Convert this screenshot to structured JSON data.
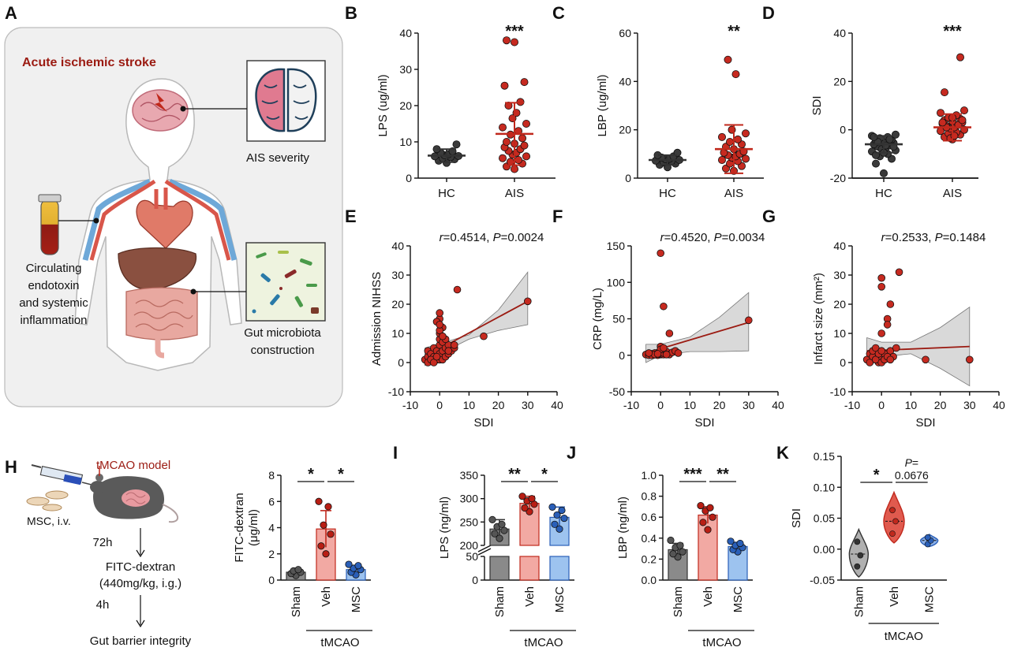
{
  "panel_labels": [
    "A",
    "B",
    "C",
    "D",
    "E",
    "F",
    "G",
    "H",
    "I",
    "J",
    "K"
  ],
  "illustration_a": {
    "title": "Acute ischemic stroke",
    "labels": [
      "AIS severity",
      "Circulating\nendotoxin\nand systemic\ninflammation",
      "Gut microbiota\nconstruction"
    ]
  },
  "illustration_h": {
    "model": "tMCAO model",
    "msc": "MSC, i.v.",
    "steps": [
      "72h",
      "FITC-dextran",
      "(440mg/kg, i.g.)",
      "4h",
      "Gut barrier integrity"
    ]
  },
  "colors": {
    "hc": "#333333",
    "ais": "#c0281c",
    "sham": "#8a8a8a",
    "veh": "#f2a9a3",
    "msc": "#9dc3ef",
    "line": "#9b1b12",
    "band": "#d9d9d9"
  },
  "chart_data": [
    {
      "id": "B",
      "type": "scatter",
      "categories": [
        "HC",
        "AIS"
      ],
      "ylabel": "LPS (ug/ml)",
      "ylim": [
        0,
        40
      ],
      "yticks": [
        0,
        10,
        20,
        30,
        40
      ],
      "mean": [
        6.2,
        12.2
      ],
      "sd": [
        1.8,
        8.6
      ],
      "points": [
        [
          4.2,
          4.8,
          5.2,
          5.5,
          5.8,
          6.0,
          6.1,
          6.3,
          6.6,
          7.0,
          7.4,
          8.0,
          9.3
        ],
        [
          2.5,
          3.2,
          4.0,
          4.5,
          5.0,
          5.5,
          6.0,
          6.5,
          7.0,
          7.5,
          8.0,
          8.5,
          9.0,
          9.5,
          10.0,
          11.0,
          12.0,
          13.0,
          14.0,
          15.0,
          16.5,
          18.0,
          20.0,
          21.0,
          25.5,
          26.5,
          37.5,
          38.0
        ]
      ],
      "significance": "***"
    },
    {
      "id": "C",
      "type": "scatter",
      "categories": [
        "HC",
        "AIS"
      ],
      "ylabel": "LBP (ug/ml)",
      "ylim": [
        0,
        60
      ],
      "yticks": [
        0,
        20,
        40,
        60
      ],
      "mean": [
        7.5,
        12.0
      ],
      "sd": [
        2.0,
        10.0
      ],
      "points": [
        [
          4.5,
          5.5,
          6.0,
          6.5,
          7.0,
          7.2,
          7.5,
          7.8,
          8.0,
          8.5,
          9.0,
          9.5,
          10.5
        ],
        [
          3.0,
          4.0,
          5.0,
          6.0,
          7.0,
          7.5,
          8.0,
          8.5,
          9.0,
          9.5,
          10.0,
          10.5,
          11.0,
          12.0,
          13.0,
          14.0,
          15.0,
          16.0,
          17.0,
          18.5,
          20.0,
          43.0,
          49.0
        ]
      ],
      "significance": "**"
    },
    {
      "id": "D",
      "type": "scatter",
      "categories": [
        "HC",
        "AIS"
      ],
      "ylabel": "SDI",
      "ylim": [
        -20,
        40
      ],
      "yticks": [
        -20,
        0,
        20,
        40
      ],
      "mean": [
        -6.0,
        1.0
      ],
      "sd": [
        3.5,
        5.5
      ],
      "points": [
        [
          -18.0,
          -14.0,
          -12.0,
          -11.0,
          -10.0,
          -9.0,
          -8.5,
          -8.0,
          -7.5,
          -7.0,
          -6.5,
          -6.0,
          -5.5,
          -5.0,
          -4.5,
          -4.0,
          -3.5,
          -3.0,
          -2.5,
          -2.0,
          -8.0,
          -6.5,
          -5.0,
          -4.0,
          -3.0,
          -7.0,
          -9.5,
          -10.5
        ],
        [
          -4.0,
          -3.0,
          -2.0,
          -1.5,
          -1.0,
          -0.5,
          0.0,
          0.5,
          1.0,
          1.5,
          2.0,
          2.5,
          3.0,
          3.5,
          4.0,
          4.5,
          5.0,
          6.0,
          7.0,
          8.0,
          -3.5,
          -2.5,
          1.0,
          2.0,
          3.0,
          4.0,
          5.0,
          15.5,
          30.0
        ]
      ],
      "significance": "***"
    },
    {
      "id": "E",
      "type": "scatter",
      "xlabel": "SDI",
      "ylabel": "Admission NIHSS",
      "xlim": [
        -10,
        40
      ],
      "ylim": [
        -10,
        40
      ],
      "xticks": [
        -10,
        0,
        10,
        20,
        30,
        40
      ],
      "yticks": [
        -10,
        0,
        10,
        20,
        30,
        40
      ],
      "stat_r": "r",
      "stat_r_value": "=0.4514, ",
      "stat_p": "P",
      "stat_p_value": "=0.0024",
      "fit": [
        [
          -5,
          2.0
        ],
        [
          30,
          21.0
        ]
      ],
      "band_upper": [
        [
          -5,
          5.0
        ],
        [
          0,
          6.5
        ],
        [
          10,
          9.5
        ],
        [
          20,
          18.0
        ],
        [
          30,
          31.0
        ]
      ],
      "band_lower": [
        [
          -5,
          -1.0
        ],
        [
          0,
          3.0
        ],
        [
          10,
          8.0
        ],
        [
          20,
          11.0
        ],
        [
          30,
          13.0
        ]
      ],
      "x": [
        -5,
        -4,
        -4,
        -3,
        -3,
        -2,
        -2,
        -1,
        -1,
        0,
        0,
        0,
        0,
        1,
        1,
        1,
        2,
        2,
        3,
        3,
        4,
        5,
        6,
        -4,
        -3,
        -2,
        -1,
        0,
        0,
        1,
        2,
        3,
        5,
        15,
        30,
        0,
        0,
        -1,
        0,
        1
      ],
      "y": [
        1,
        2,
        4,
        1,
        3,
        2,
        5,
        1,
        4,
        1,
        3,
        6,
        8,
        1,
        4,
        7,
        2,
        5,
        3,
        6,
        4,
        5,
        25,
        0,
        1,
        0,
        2,
        15,
        17,
        12,
        8,
        4,
        6,
        9,
        21,
        10,
        11,
        14,
        13,
        9
      ]
    },
    {
      "id": "F",
      "type": "scatter",
      "xlabel": "SDI",
      "ylabel": "CRP (mg/L)",
      "xlim": [
        -10,
        40
      ],
      "ylim": [
        -50,
        150
      ],
      "xticks": [
        -10,
        0,
        10,
        20,
        30,
        40
      ],
      "yticks": [
        -50,
        0,
        50,
        100,
        150
      ],
      "stat_r": "r",
      "stat_r_value": "=0.4520, ",
      "stat_p": "P",
      "stat_p_value": "=0.0034",
      "fit": [
        [
          -5,
          3.0
        ],
        [
          30,
          45.0
        ]
      ],
      "band_upper": [
        [
          -5,
          15.0
        ],
        [
          0,
          15.0
        ],
        [
          10,
          25.0
        ],
        [
          20,
          52.0
        ],
        [
          30,
          86.0
        ]
      ],
      "band_lower": [
        [
          -5,
          -10.0
        ],
        [
          0,
          0.0
        ],
        [
          10,
          5.0
        ],
        [
          20,
          5.0
        ],
        [
          30,
          6.0
        ]
      ],
      "x": [
        -5,
        -4,
        -3,
        -2,
        -2,
        -1,
        -1,
        0,
        0,
        0,
        1,
        1,
        2,
        2,
        3,
        4,
        5,
        6,
        -3,
        -2,
        0,
        1,
        3,
        0,
        0,
        1,
        30,
        -1,
        2,
        -4
      ],
      "y": [
        1,
        0,
        2,
        1,
        3,
        0,
        2,
        1,
        4,
        2,
        1,
        3,
        2,
        5,
        1,
        4,
        6,
        3,
        0,
        1,
        140,
        67,
        30,
        12,
        8,
        10,
        48,
        2,
        1,
        3
      ]
    },
    {
      "id": "G",
      "type": "scatter",
      "xlabel": "SDI",
      "ylabel": "Infarct size (mm²)",
      "xlim": [
        -10,
        40
      ],
      "ylim": [
        -10,
        40
      ],
      "xticks": [
        -10,
        0,
        10,
        20,
        30,
        40
      ],
      "yticks": [
        -10,
        0,
        10,
        20,
        30,
        40
      ],
      "stat_r": "r",
      "stat_r_value": "=0.2533, ",
      "stat_p": "P",
      "stat_p_value": "=0.1484",
      "fit": [
        [
          -5,
          4.0
        ],
        [
          30,
          5.5
        ]
      ],
      "band_upper": [
        [
          -5,
          8.5
        ],
        [
          0,
          7.0
        ],
        [
          10,
          7.0
        ],
        [
          20,
          12.0
        ],
        [
          30,
          19.0
        ]
      ],
      "band_lower": [
        [
          -5,
          0.0
        ],
        [
          0,
          2.0
        ],
        [
          10,
          3.0
        ],
        [
          20,
          -2.0
        ],
        [
          30,
          -8.0
        ]
      ],
      "x": [
        -5,
        -4,
        -4,
        -3,
        -3,
        -2,
        -2,
        -1,
        -1,
        0,
        0,
        0,
        1,
        1,
        2,
        2,
        3,
        3,
        4,
        5,
        6,
        -2,
        0,
        1,
        2,
        15,
        30,
        -1,
        0,
        3
      ],
      "y": [
        1,
        0,
        3,
        2,
        4,
        1,
        5,
        0,
        2,
        29,
        26,
        10,
        1,
        3,
        15,
        13,
        20,
        4,
        2,
        5,
        31,
        1,
        0,
        1,
        2,
        1,
        1,
        3,
        4,
        1
      ]
    },
    {
      "id": "H",
      "type": "bar",
      "categories": [
        "Sham",
        "Veh",
        "MSC"
      ],
      "group": "tMCAO",
      "ylabel_line1": "FITC-dextran",
      "ylabel_line2": "(μg/ml)",
      "ylim": [
        0,
        8
      ],
      "yticks": [
        0,
        2,
        4,
        6,
        8
      ],
      "values": [
        0.6,
        3.9,
        0.8
      ],
      "sd": [
        0.2,
        1.4,
        0.3
      ],
      "points": [
        [
          0.35,
          0.5,
          0.6,
          0.7,
          0.8
        ],
        [
          2.0,
          2.6,
          3.5,
          4.2,
          5.6,
          6.0
        ],
        [
          0.4,
          0.6,
          0.8,
          0.9,
          1.1,
          1.2
        ]
      ],
      "significance": [
        {
          "from": 0,
          "to": 1,
          "label": "*"
        },
        {
          "from": 1,
          "to": 2,
          "label": "*"
        }
      ]
    },
    {
      "id": "I",
      "type": "bar",
      "categories": [
        "Sham",
        "Veh",
        "MSC"
      ],
      "group": "tMCAO",
      "ylabel": "LPS (ng/ml)",
      "ylim": [
        0,
        350
      ],
      "yticks": [
        0,
        50,
        200,
        250,
        300,
        350
      ],
      "axis_break": [
        50,
        200
      ],
      "values": [
        235,
        290,
        260
      ],
      "sd": [
        20,
        15,
        22
      ],
      "points": [
        [
          215,
          225,
          232,
          240,
          245,
          255
        ],
        [
          272,
          280,
          288,
          295,
          300,
          305
        ],
        [
          235,
          245,
          258,
          265,
          275,
          282
        ]
      ],
      "significance": [
        {
          "from": 0,
          "to": 1,
          "label": "**"
        },
        {
          "from": 1,
          "to": 2,
          "label": "*"
        }
      ]
    },
    {
      "id": "J",
      "type": "bar",
      "categories": [
        "Sham",
        "Veh",
        "MSC"
      ],
      "group": "tMCAO",
      "ylabel": "LBP (ng/ml)",
      "ylim": [
        0,
        1.0
      ],
      "yticks": [
        0.0,
        0.2,
        0.4,
        0.6,
        0.8,
        1.0
      ],
      "values": [
        0.29,
        0.62,
        0.32
      ],
      "sd": [
        0.06,
        0.08,
        0.04
      ],
      "points": [
        [
          0.22,
          0.25,
          0.27,
          0.31,
          0.33,
          0.38
        ],
        [
          0.48,
          0.55,
          0.6,
          0.66,
          0.69,
          0.71
        ],
        [
          0.27,
          0.29,
          0.31,
          0.33,
          0.35,
          0.37
        ]
      ],
      "significance": [
        {
          "from": 0,
          "to": 1,
          "label": "***"
        },
        {
          "from": 1,
          "to": 2,
          "label": "**"
        }
      ]
    },
    {
      "id": "K",
      "type": "violin",
      "categories": [
        "Sham",
        "Veh",
        "MSC"
      ],
      "group": "tMCAO",
      "ylabel": "SDI",
      "ylim": [
        -0.05,
        0.15
      ],
      "yticks": [
        -0.05,
        0.0,
        0.05,
        0.1,
        0.15
      ],
      "medians": [
        -0.008,
        0.045,
        0.014
      ],
      "points": [
        [
          -0.028,
          -0.01,
          0.012
        ],
        [
          0.025,
          0.045,
          0.063
        ],
        [
          0.008,
          0.014,
          0.019
        ]
      ],
      "range": [
        [
          -0.045,
          0.032
        ],
        [
          0.01,
          0.092
        ],
        [
          0.004,
          0.024
        ]
      ],
      "significance": [
        {
          "from": 0,
          "to": 1,
          "label": "*"
        },
        {
          "from": 1,
          "to": 2,
          "label": "0.0676",
          "prefix": "P="
        }
      ]
    }
  ]
}
